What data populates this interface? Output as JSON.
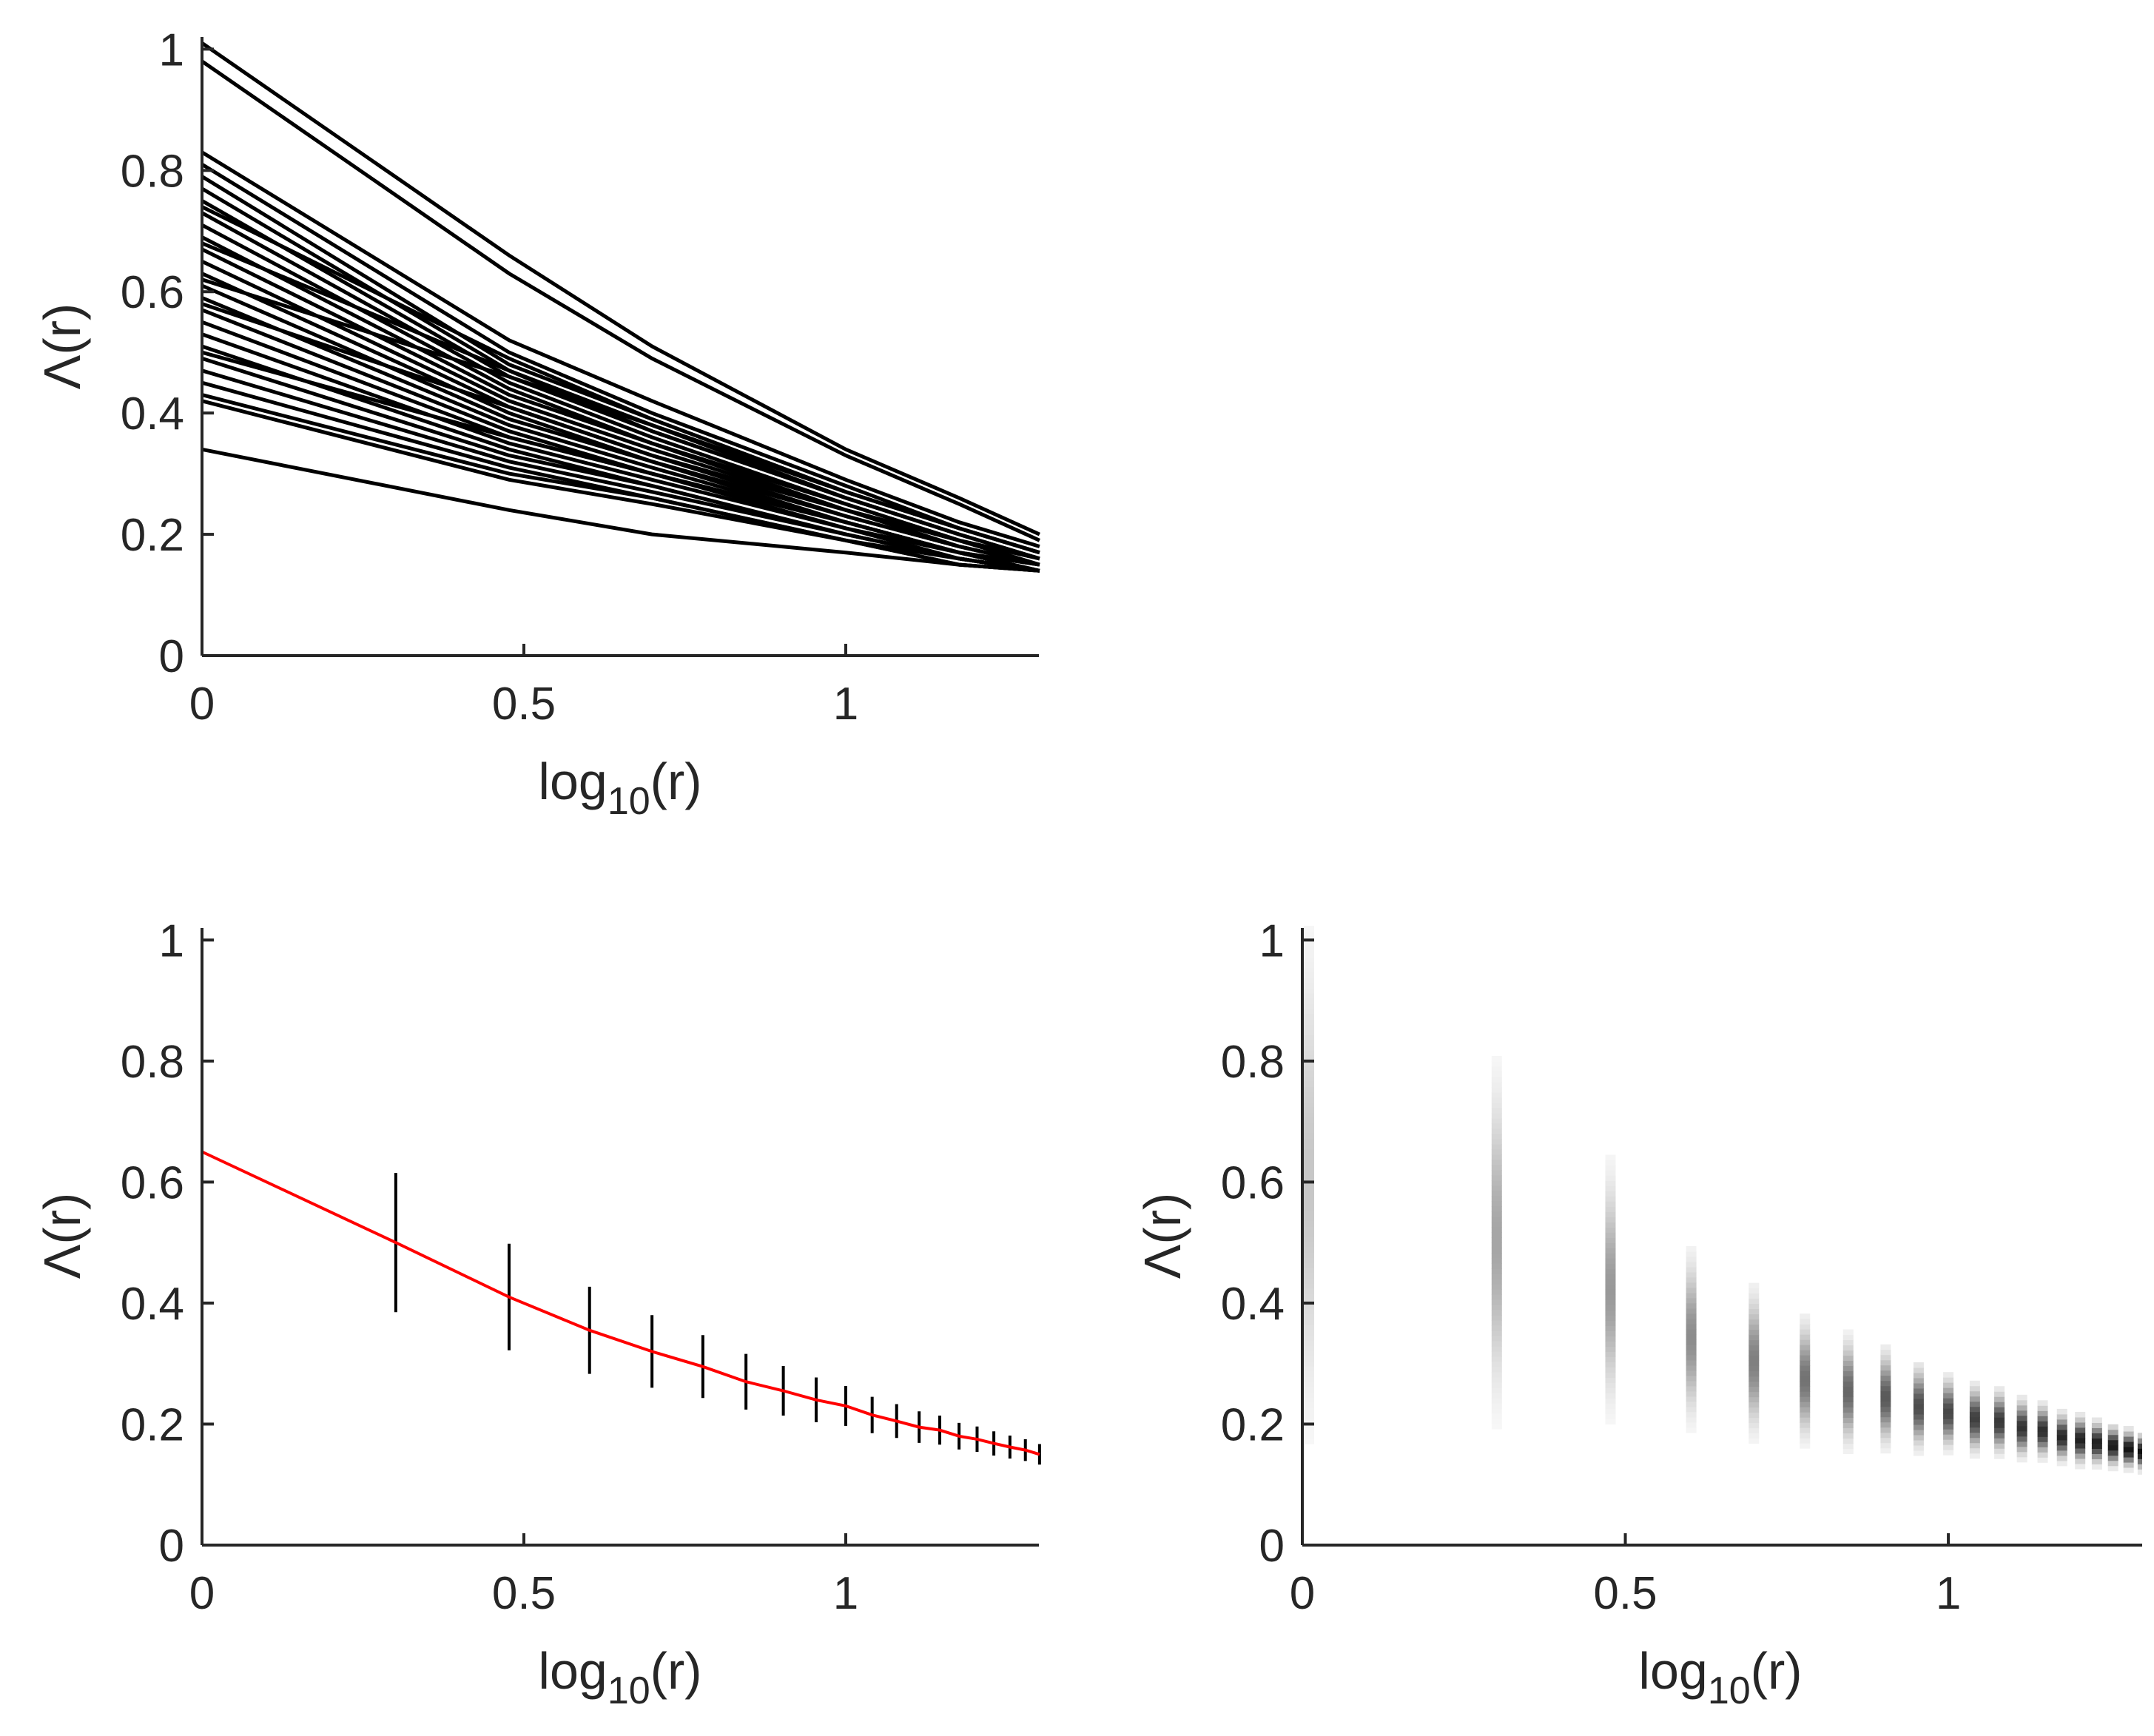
{
  "chart_data": [
    {
      "type": "line",
      "panel": "top-left",
      "xlabel": "log10(r)",
      "ylabel": "Λ(r)",
      "xlim": [
        0,
        1.3
      ],
      "ylim": [
        0,
        1.02
      ],
      "xticks": [
        0,
        0.5,
        1
      ],
      "xtick_labels": [
        "0",
        "0.5",
        "1"
      ],
      "yticks": [
        0,
        0.2,
        0.4,
        0.6,
        0.8,
        1
      ],
      "ytick_labels": [
        "0",
        "0.2",
        "0.4",
        "0.6",
        "0.8",
        "1"
      ],
      "x": [
        0,
        0.477,
        0.699,
        1.0,
        1.176,
        1.301
      ],
      "series_color": "#000000",
      "series": [
        {
          "values": [
            1.01,
            0.66,
            0.51,
            0.34,
            0.26,
            0.2
          ]
        },
        {
          "values": [
            0.98,
            0.63,
            0.49,
            0.33,
            0.25,
            0.19
          ]
        },
        {
          "values": [
            0.83,
            0.52,
            0.42,
            0.29,
            0.22,
            0.18
          ]
        },
        {
          "values": [
            0.81,
            0.5,
            0.4,
            0.28,
            0.21,
            0.17
          ]
        },
        {
          "values": [
            0.79,
            0.48,
            0.39,
            0.27,
            0.21,
            0.17
          ]
        },
        {
          "values": [
            0.77,
            0.47,
            0.38,
            0.26,
            0.2,
            0.16
          ]
        },
        {
          "values": [
            0.75,
            0.46,
            0.37,
            0.26,
            0.2,
            0.16
          ]
        },
        {
          "values": [
            0.73,
            0.45,
            0.36,
            0.25,
            0.19,
            0.16
          ]
        },
        {
          "values": [
            0.71,
            0.44,
            0.35,
            0.25,
            0.19,
            0.16
          ]
        },
        {
          "values": [
            0.69,
            0.43,
            0.35,
            0.24,
            0.19,
            0.15
          ]
        },
        {
          "values": [
            0.67,
            0.42,
            0.34,
            0.24,
            0.18,
            0.15
          ]
        },
        {
          "values": [
            0.65,
            0.41,
            0.33,
            0.23,
            0.18,
            0.15
          ]
        },
        {
          "values": [
            0.63,
            0.4,
            0.32,
            0.23,
            0.18,
            0.15
          ]
        },
        {
          "values": [
            0.61,
            0.39,
            0.32,
            0.22,
            0.17,
            0.15
          ]
        },
        {
          "values": [
            0.59,
            0.38,
            0.31,
            0.22,
            0.17,
            0.14
          ]
        },
        {
          "values": [
            0.57,
            0.37,
            0.3,
            0.22,
            0.17,
            0.14
          ]
        },
        {
          "values": [
            0.55,
            0.36,
            0.3,
            0.21,
            0.17,
            0.14
          ]
        },
        {
          "values": [
            0.53,
            0.35,
            0.29,
            0.21,
            0.16,
            0.14
          ]
        },
        {
          "values": [
            0.51,
            0.34,
            0.28,
            0.2,
            0.16,
            0.14
          ]
        },
        {
          "values": [
            0.49,
            0.33,
            0.28,
            0.2,
            0.16,
            0.14
          ]
        },
        {
          "values": [
            0.47,
            0.32,
            0.27,
            0.2,
            0.16,
            0.14
          ]
        },
        {
          "values": [
            0.45,
            0.31,
            0.26,
            0.19,
            0.16,
            0.14
          ]
        },
        {
          "values": [
            0.43,
            0.3,
            0.26,
            0.19,
            0.15,
            0.14
          ]
        },
        {
          "values": [
            0.42,
            0.29,
            0.25,
            0.19,
            0.15,
            0.14
          ]
        },
        {
          "values": [
            0.34,
            0.24,
            0.2,
            0.17,
            0.15,
            0.14
          ]
        },
        {
          "values": [
            0.62,
            0.46,
            0.38,
            0.27,
            0.21,
            0.17
          ]
        },
        {
          "values": [
            0.68,
            0.47,
            0.37,
            0.26,
            0.2,
            0.16
          ]
        },
        {
          "values": [
            0.58,
            0.41,
            0.33,
            0.24,
            0.19,
            0.15
          ]
        },
        {
          "values": [
            0.5,
            0.36,
            0.3,
            0.22,
            0.17,
            0.15
          ]
        },
        {
          "values": [
            0.74,
            0.49,
            0.39,
            0.27,
            0.21,
            0.17
          ]
        }
      ]
    },
    {
      "type": "line",
      "panel": "bottom-left",
      "xlabel": "log10(r)",
      "ylabel": "Λ(r)",
      "xlim": [
        0,
        1.3
      ],
      "ylim": [
        0,
        1.02
      ],
      "xticks": [
        0,
        0.5,
        1
      ],
      "xtick_labels": [
        "0",
        "0.5",
        "1"
      ],
      "yticks": [
        0,
        0.2,
        0.4,
        0.6,
        0.8,
        1
      ],
      "ytick_labels": [
        "0",
        "0.2",
        "0.4",
        "0.6",
        "0.8",
        "1"
      ],
      "mean_color": "#ff0000",
      "errorbar_color": "#000000",
      "x": [
        0,
        0.301,
        0.477,
        0.602,
        0.699,
        0.778,
        0.845,
        0.903,
        0.954,
        1.0,
        1.041,
        1.079,
        1.114,
        1.146,
        1.176,
        1.204,
        1.23,
        1.255,
        1.279,
        1.301
      ],
      "mean": [
        0.65,
        0.5,
        0.41,
        0.355,
        0.32,
        0.295,
        0.27,
        0.255,
        0.24,
        0.23,
        0.215,
        0.205,
        0.195,
        0.19,
        0.18,
        0.175,
        0.168,
        0.162,
        0.157,
        0.15
      ],
      "error": [
        0.19,
        0.115,
        0.088,
        0.072,
        0.06,
        0.052,
        0.046,
        0.041,
        0.037,
        0.033,
        0.03,
        0.028,
        0.026,
        0.024,
        0.022,
        0.021,
        0.02,
        0.019,
        0.018,
        0.017
      ]
    },
    {
      "type": "heatmap",
      "panel": "bottom-right",
      "xlabel": "log10(r)",
      "ylabel": "Λ(r)",
      "xlim": [
        0,
        1.3
      ],
      "ylim": [
        0,
        1.02
      ],
      "xticks": [
        0,
        0.5,
        1
      ],
      "xtick_labels": [
        "0",
        "0.5",
        "1"
      ],
      "yticks": [
        0,
        0.2,
        0.4,
        0.6,
        0.8,
        1
      ],
      "ytick_labels": [
        "0",
        "0.2",
        "0.4",
        "0.6",
        "0.8",
        "1"
      ],
      "color_low": "#ffffff",
      "color_high": "#000000",
      "columns": [
        {
          "x": 0,
          "center": 0.6,
          "spread": 0.22,
          "peak": 0.22
        },
        {
          "x": 0.301,
          "center": 0.5,
          "spread": 0.14,
          "peak": 0.35
        },
        {
          "x": 0.477,
          "center": 0.42,
          "spread": 0.1,
          "peak": 0.4
        },
        {
          "x": 0.602,
          "center": 0.34,
          "spread": 0.07,
          "peak": 0.45
        },
        {
          "x": 0.699,
          "center": 0.3,
          "spread": 0.06,
          "peak": 0.5
        },
        {
          "x": 0.778,
          "center": 0.27,
          "spread": 0.05,
          "peak": 0.55
        },
        {
          "x": 0.845,
          "center": 0.25,
          "spread": 0.045,
          "peak": 0.6
        },
        {
          "x": 0.903,
          "center": 0.24,
          "spread": 0.04,
          "peak": 0.65
        },
        {
          "x": 0.954,
          "center": 0.225,
          "spread": 0.035,
          "peak": 0.7
        },
        {
          "x": 1.0,
          "center": 0.215,
          "spread": 0.03,
          "peak": 0.72
        },
        {
          "x": 1.041,
          "center": 0.205,
          "spread": 0.028,
          "peak": 0.75
        },
        {
          "x": 1.079,
          "center": 0.2,
          "spread": 0.026,
          "peak": 0.78
        },
        {
          "x": 1.114,
          "center": 0.19,
          "spread": 0.024,
          "peak": 0.8
        },
        {
          "x": 1.146,
          "center": 0.185,
          "spread": 0.022,
          "peak": 0.82
        },
        {
          "x": 1.176,
          "center": 0.175,
          "spread": 0.02,
          "peak": 0.85
        },
        {
          "x": 1.204,
          "center": 0.17,
          "spread": 0.02,
          "peak": 0.87
        },
        {
          "x": 1.23,
          "center": 0.165,
          "spread": 0.018,
          "peak": 0.88
        },
        {
          "x": 1.255,
          "center": 0.16,
          "spread": 0.017,
          "peak": 0.9
        },
        {
          "x": 1.279,
          "center": 0.155,
          "spread": 0.016,
          "peak": 0.92
        },
        {
          "x": 1.301,
          "center": 0.15,
          "spread": 0.015,
          "peak": 0.95
        }
      ]
    }
  ]
}
